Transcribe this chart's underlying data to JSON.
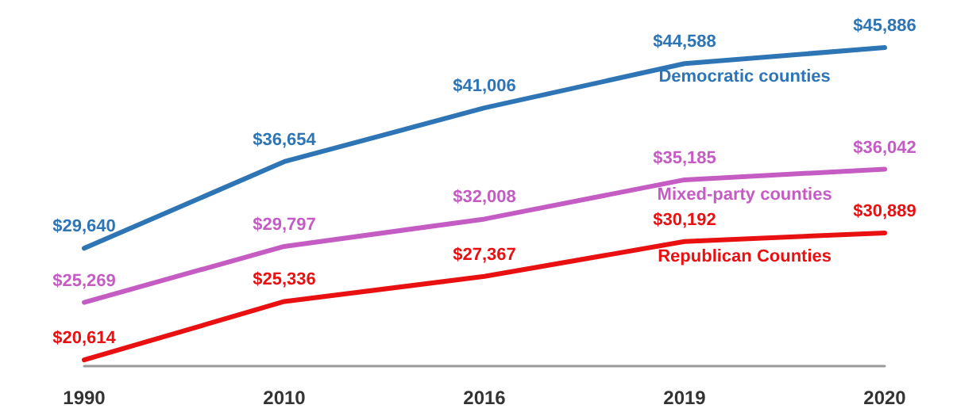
{
  "chart_data": {
    "type": "line",
    "categories": [
      "1990",
      "2010",
      "2016",
      "2019",
      "2020"
    ],
    "legend": false,
    "grid": false,
    "marker": "none",
    "line_style": "solid",
    "series": [
      {
        "name": "Democratic counties",
        "color": "#2e75b6",
        "values": [
          29640,
          36654,
          41006,
          44588,
          45886
        ],
        "value_labels": [
          "$29,640",
          "$36,654",
          "$41,006",
          "$44,588",
          "$45,886"
        ]
      },
      {
        "name": "Mixed-party counties",
        "color": "#c45cc4",
        "values": [
          25269,
          29797,
          32008,
          35185,
          36042
        ],
        "value_labels": [
          "$25,269",
          "$29,797",
          "$32,008",
          "$35,185",
          "$36,042"
        ]
      },
      {
        "name": "Republican Counties",
        "color": "#e81010",
        "values": [
          20614,
          25336,
          27367,
          30192,
          30889
        ],
        "value_labels": [
          "$20,614",
          "$25,336",
          "$27,367",
          "$30,192",
          "$30,889"
        ]
      }
    ]
  }
}
